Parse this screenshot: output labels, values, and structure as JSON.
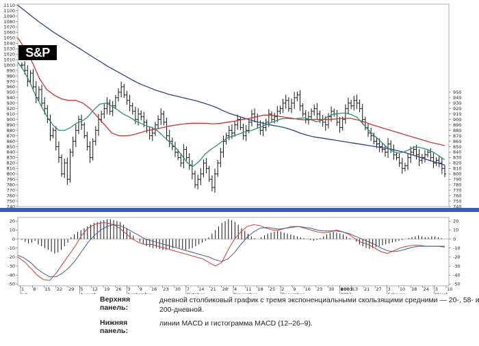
{
  "logo": {
    "text": "S&P"
  },
  "captions": [
    {
      "label": "Верхняя панель:",
      "text": "дневной столбиковый график с тремя экспоненциальными скользящими средними — 20-, 58- и 200-дневной."
    },
    {
      "label": "Нижняя панель:",
      "text": "линии MACD и гистограмма MACD (12–26–9)."
    }
  ],
  "chart_data": [
    {
      "type": "ohlc-bar",
      "panel": "upper",
      "y_left_ticks": [
        740,
        750,
        760,
        770,
        780,
        790,
        800,
        810,
        820,
        830,
        840,
        850,
        860,
        870,
        880,
        890,
        900,
        910,
        920,
        930,
        940,
        950,
        960,
        970,
        980,
        990,
        1000,
        1010,
        1020,
        1030,
        1040,
        1050,
        1060,
        1070,
        1080,
        1090,
        1100,
        1110
      ],
      "y_right_ticks": [
        740,
        750,
        760,
        770,
        780,
        790,
        800,
        810,
        820,
        830,
        840,
        850,
        860,
        870,
        880,
        890,
        900,
        910,
        920,
        930,
        940,
        950
      ],
      "ylim": [
        740,
        1112
      ],
      "bar_closes": [
        1000,
        990,
        970,
        985,
        960,
        940,
        955,
        930,
        920,
        900,
        870,
        880,
        850,
        830,
        800,
        820,
        790,
        840,
        860,
        880,
        900,
        890,
        870,
        850,
        830,
        860,
        880,
        900,
        910,
        920,
        930,
        915,
        925,
        940,
        950,
        960,
        945,
        935,
        925,
        915,
        900,
        910,
        905,
        895,
        880,
        870,
        875,
        890,
        900,
        910,
        895,
        870,
        860,
        850,
        840,
        830,
        820,
        845,
        830,
        815,
        800,
        780,
        790,
        800,
        820,
        810,
        790,
        775,
        800,
        820,
        840,
        860,
        870,
        880,
        875,
        890,
        900,
        885,
        870,
        880,
        895,
        910,
        905,
        890,
        880,
        885,
        895,
        910,
        900,
        905,
        915,
        920,
        930,
        935,
        920,
        930,
        940,
        945,
        925,
        910,
        900,
        905,
        915,
        920,
        910,
        900,
        895,
        890,
        905,
        915,
        910,
        895,
        885,
        900,
        920,
        930,
        925,
        935,
        930,
        920,
        900,
        885,
        875,
        870,
        860,
        855,
        850,
        845,
        840,
        855,
        845,
        835,
        830,
        820,
        810,
        815,
        830,
        840,
        845,
        835,
        825,
        830,
        835,
        840,
        830,
        820,
        825,
        820,
        810,
        800
      ],
      "series": [
        {
          "name": "",
          "values": [
            1110,
            1100,
            1090,
            1080,
            1071,
            1062,
            1054,
            1046,
            1038,
            1030,
            1022,
            1014,
            1006,
            998,
            991,
            984,
            977,
            970,
            964,
            959,
            954,
            950,
            946,
            943,
            940,
            937,
            934,
            930,
            926,
            921,
            915,
            910,
            906,
            902,
            898,
            895,
            892,
            889,
            887,
            884,
            880,
            875,
            871,
            868,
            866,
            864,
            862,
            860,
            858,
            856,
            854,
            852,
            850,
            848,
            846,
            843,
            840,
            836,
            832,
            828,
            824,
            820,
            816
          ]
        },
        {
          "name": "",
          "values": [
            1050,
            1030,
            1005,
            975,
            955,
            945,
            938,
            935,
            935,
            930,
            920,
            905,
            890,
            875,
            870,
            870,
            872,
            876,
            880,
            882,
            885,
            888,
            890,
            892,
            893,
            893,
            893,
            892,
            893,
            895,
            897,
            900,
            902,
            905,
            908,
            908,
            906,
            904,
            902,
            900,
            899,
            900,
            900,
            900,
            901,
            902,
            902,
            899,
            895,
            890,
            886,
            882,
            878,
            874,
            870,
            866,
            862,
            858,
            855,
            852
          ]
        },
        {
          "name": "",
          "values": [
            1005,
            990,
            970,
            945,
            925,
            905,
            890,
            880,
            880,
            885,
            893,
            897,
            905,
            918,
            928,
            930,
            925,
            918,
            910,
            905,
            898,
            893,
            888,
            885,
            878,
            868,
            858,
            848,
            835,
            820,
            814,
            823,
            836,
            845,
            852,
            860,
            867,
            870,
            874,
            878,
            880,
            884,
            888,
            893,
            897,
            901,
            902,
            901,
            902,
            903,
            900,
            896,
            898,
            905,
            910,
            911,
            912,
            909,
            904,
            892,
            880,
            870,
            860,
            850,
            842,
            838,
            840,
            845,
            850,
            848,
            845,
            840,
            833,
            826
          ]
        }
      ]
    },
    {
      "type": "macd",
      "panel": "lower",
      "y_left_ticks": [
        20,
        10,
        0,
        -10,
        -20,
        -30,
        -40,
        -50
      ],
      "y_right_ticks": [
        20,
        10,
        0,
        -10,
        -20,
        -30,
        -40,
        -50
      ],
      "ylim": [
        -52,
        24
      ],
      "x_tick_labels": [
        "1",
        "8",
        "15",
        "22",
        "29",
        "5",
        "12",
        "19",
        "26",
        "3",
        "9",
        "16",
        "23",
        "30",
        "7",
        "14",
        "21",
        "28",
        "4",
        "11",
        "18",
        "25",
        "2",
        "9",
        "16",
        "23",
        "30",
        "6",
        "13",
        "21",
        "27",
        "3",
        "10",
        "18",
        "24",
        "3",
        "10"
      ],
      "x_tick_bold": [
        2003
      ],
      "month_labels": [
        "July",
        "August",
        "September",
        "October",
        "November",
        "December",
        "2003",
        "February",
        "March"
      ],
      "histogram": [
        -1,
        -3,
        -5,
        -4,
        -2,
        -6,
        -8,
        -10,
        -12,
        -14,
        -16,
        -15,
        -12,
        -8,
        -4,
        2,
        5,
        8,
        10,
        12,
        14,
        16,
        18,
        19,
        20,
        21,
        22,
        22,
        21,
        20,
        19,
        16,
        12,
        8,
        4,
        0,
        -3,
        -6,
        -8,
        -9,
        -10,
        -10,
        -11,
        -12,
        -12,
        -11,
        -10,
        -9,
        -10,
        -11,
        -12,
        -11,
        -10,
        -8,
        -6,
        -4,
        -2,
        2,
        6,
        10,
        14,
        18,
        20,
        22,
        21,
        19,
        16,
        12,
        9,
        6,
        3,
        1,
        0,
        2,
        4,
        6,
        7,
        8,
        9,
        8,
        7,
        6,
        5,
        4,
        3,
        2,
        1,
        0,
        -1,
        -2,
        -1,
        1,
        3,
        5,
        7,
        8,
        7,
        6,
        5,
        3,
        1,
        0,
        -3,
        -6,
        -8,
        -10,
        -11,
        -10,
        -9,
        -8,
        -7,
        -6,
        -5,
        -4,
        -3,
        -2,
        -1,
        0,
        1,
        2,
        3,
        4,
        3,
        2,
        2,
        3,
        3,
        2,
        1,
        0
      ],
      "series": [
        {
          "name": "",
          "values": [
            -20,
            -25,
            -32,
            -40,
            -45,
            -46,
            -38,
            -28,
            -18,
            -8,
            4,
            12,
            16,
            18,
            18,
            16,
            12,
            6,
            0,
            -4,
            -6,
            -6,
            -8,
            -10,
            -12,
            -14,
            -16,
            -18,
            -20,
            -22,
            -26,
            -30,
            -26,
            -12,
            0,
            8,
            14,
            16,
            15,
            12,
            10,
            10,
            12,
            14,
            14,
            12,
            10,
            8,
            7,
            8,
            10,
            8,
            5,
            0,
            -4,
            -6,
            -10,
            -14,
            -16,
            -13,
            -10,
            -8,
            -7,
            -7,
            -8,
            -8,
            -8,
            -9
          ]
        },
        {
          "name": "",
          "values": [
            -18,
            -21,
            -26,
            -33,
            -38,
            -42,
            -42,
            -38,
            -32,
            -24,
            -14,
            -4,
            4,
            10,
            14,
            16,
            15,
            12,
            8,
            4,
            0,
            -2,
            -4,
            -6,
            -8,
            -10,
            -12,
            -14,
            -16,
            -18,
            -20,
            -23,
            -25,
            -22,
            -15,
            -6,
            2,
            8,
            12,
            13,
            12,
            11,
            12,
            13,
            14,
            13,
            12,
            10,
            9,
            9,
            9,
            8,
            6,
            3,
            0,
            -3,
            -6,
            -10,
            -13,
            -14,
            -13,
            -11,
            -9,
            -8,
            -8,
            -8,
            -8,
            -8
          ]
        }
      ]
    }
  ]
}
